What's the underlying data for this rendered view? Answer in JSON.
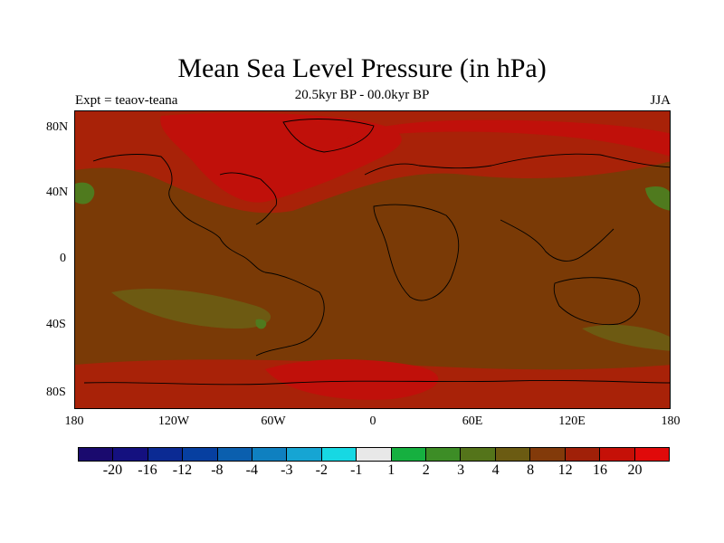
{
  "title": "Mean Sea Level Pressure (in hPa)",
  "subtitle": "20.5kyr BP - 00.0kyr BP",
  "left_label": "Expt = teaov-teana",
  "right_label": "JJA",
  "x_ticks": [
    "180",
    "120W",
    "60W",
    "0",
    "60E",
    "120E",
    "180"
  ],
  "y_ticks": [
    "80N",
    "40N",
    "0",
    "40S",
    "80S"
  ],
  "colorbar": {
    "labels": [
      "-20",
      "-16",
      "-12",
      "-8",
      "-4",
      "-3",
      "-2",
      "-1",
      "1",
      "2",
      "3",
      "4",
      "8",
      "12",
      "16",
      "20"
    ],
    "colors": [
      "#1a0a6e",
      "#14107f",
      "#0b2a93",
      "#063fa0",
      "#0b5fae",
      "#0f80c0",
      "#16a5d3",
      "#17d8e3",
      "#e8e8e8",
      "#16b040",
      "#3d8d26",
      "#54741a",
      "#6b5b12",
      "#823a0a",
      "#a02008",
      "#c51007",
      "#e00a0a"
    ]
  },
  "map_colors": {
    "background": "#7a3a06",
    "warm": "#a82208",
    "hot": "#c0100a",
    "green": "#4f7a1e",
    "olive": "#6d5a12"
  }
}
